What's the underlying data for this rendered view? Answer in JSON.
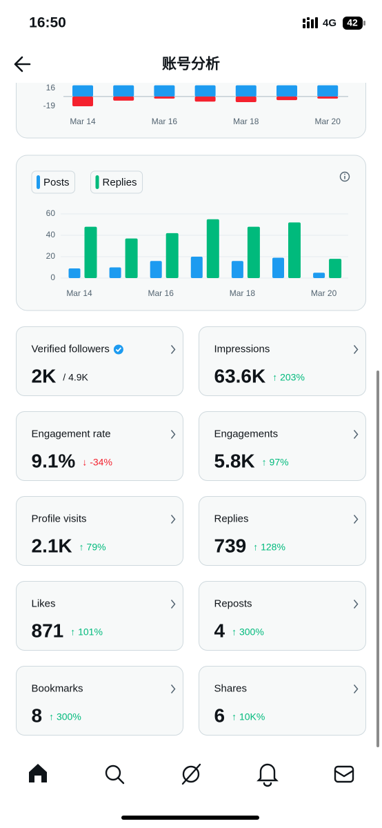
{
  "status_bar": {
    "time": "16:50",
    "network": "4G",
    "battery": "42"
  },
  "header": {
    "title": "账号分析"
  },
  "chart_data": [
    {
      "type": "bar",
      "categories": [
        "Mar 14",
        null,
        "Mar 16",
        null,
        "Mar 18",
        null,
        "Mar 20"
      ],
      "series": [
        {
          "color": "#1d9bf0",
          "values": [
            22,
            22,
            22,
            22,
            22,
            22,
            22
          ]
        },
        {
          "color": "#f4212e",
          "values": [
            -19,
            -8,
            -4,
            -10,
            -11,
            -7,
            -4
          ]
        }
      ],
      "ylim": [
        -22,
        22
      ],
      "yticks": [
        -19,
        16
      ]
    },
    {
      "type": "bar",
      "categories": [
        "Mar 14",
        null,
        "Mar 16",
        null,
        "Mar 18",
        null,
        "Mar 20"
      ],
      "series": [
        {
          "name": "Posts",
          "color": "#1d9bf0",
          "values": [
            9,
            10,
            16,
            20,
            16,
            19,
            5
          ]
        },
        {
          "name": "Replies",
          "color": "#00ba7c",
          "values": [
            48,
            37,
            42,
            55,
            48,
            52,
            18
          ]
        }
      ],
      "ylim": [
        0,
        60
      ],
      "yticks": [
        0,
        20,
        40,
        60
      ],
      "grid": true
    }
  ],
  "metrics": [
    {
      "label": "Verified followers",
      "value": "2K",
      "total": "/ 4.9K"
    },
    {
      "label": "Impressions",
      "value": "63.6K",
      "change": "↑ 203%",
      "color": "#00ba7c"
    },
    {
      "label": "Engagement rate",
      "value": "9.1%",
      "change": "↓ -34%",
      "color": "#f4212e"
    },
    {
      "label": "Engagements",
      "value": "5.8K",
      "change": "↑ 97%",
      "color": "#00ba7c"
    },
    {
      "label": "Profile visits",
      "value": "2.1K",
      "change": "↑ 79%",
      "color": "#00ba7c"
    },
    {
      "label": "Replies",
      "value": "739",
      "change": "↑ 128%",
      "color": "#00ba7c"
    },
    {
      "label": "Likes",
      "value": "871",
      "change": "↑ 101%",
      "color": "#00ba7c"
    },
    {
      "label": "Reposts",
      "value": "4",
      "change": "↑ 300%",
      "color": "#00ba7c"
    },
    {
      "label": "Bookmarks",
      "value": "8",
      "change": "↑ 300%",
      "color": "#00ba7c"
    },
    {
      "label": "Shares",
      "value": "6",
      "change": "↑ 10K%",
      "color": "#00ba7c"
    }
  ]
}
